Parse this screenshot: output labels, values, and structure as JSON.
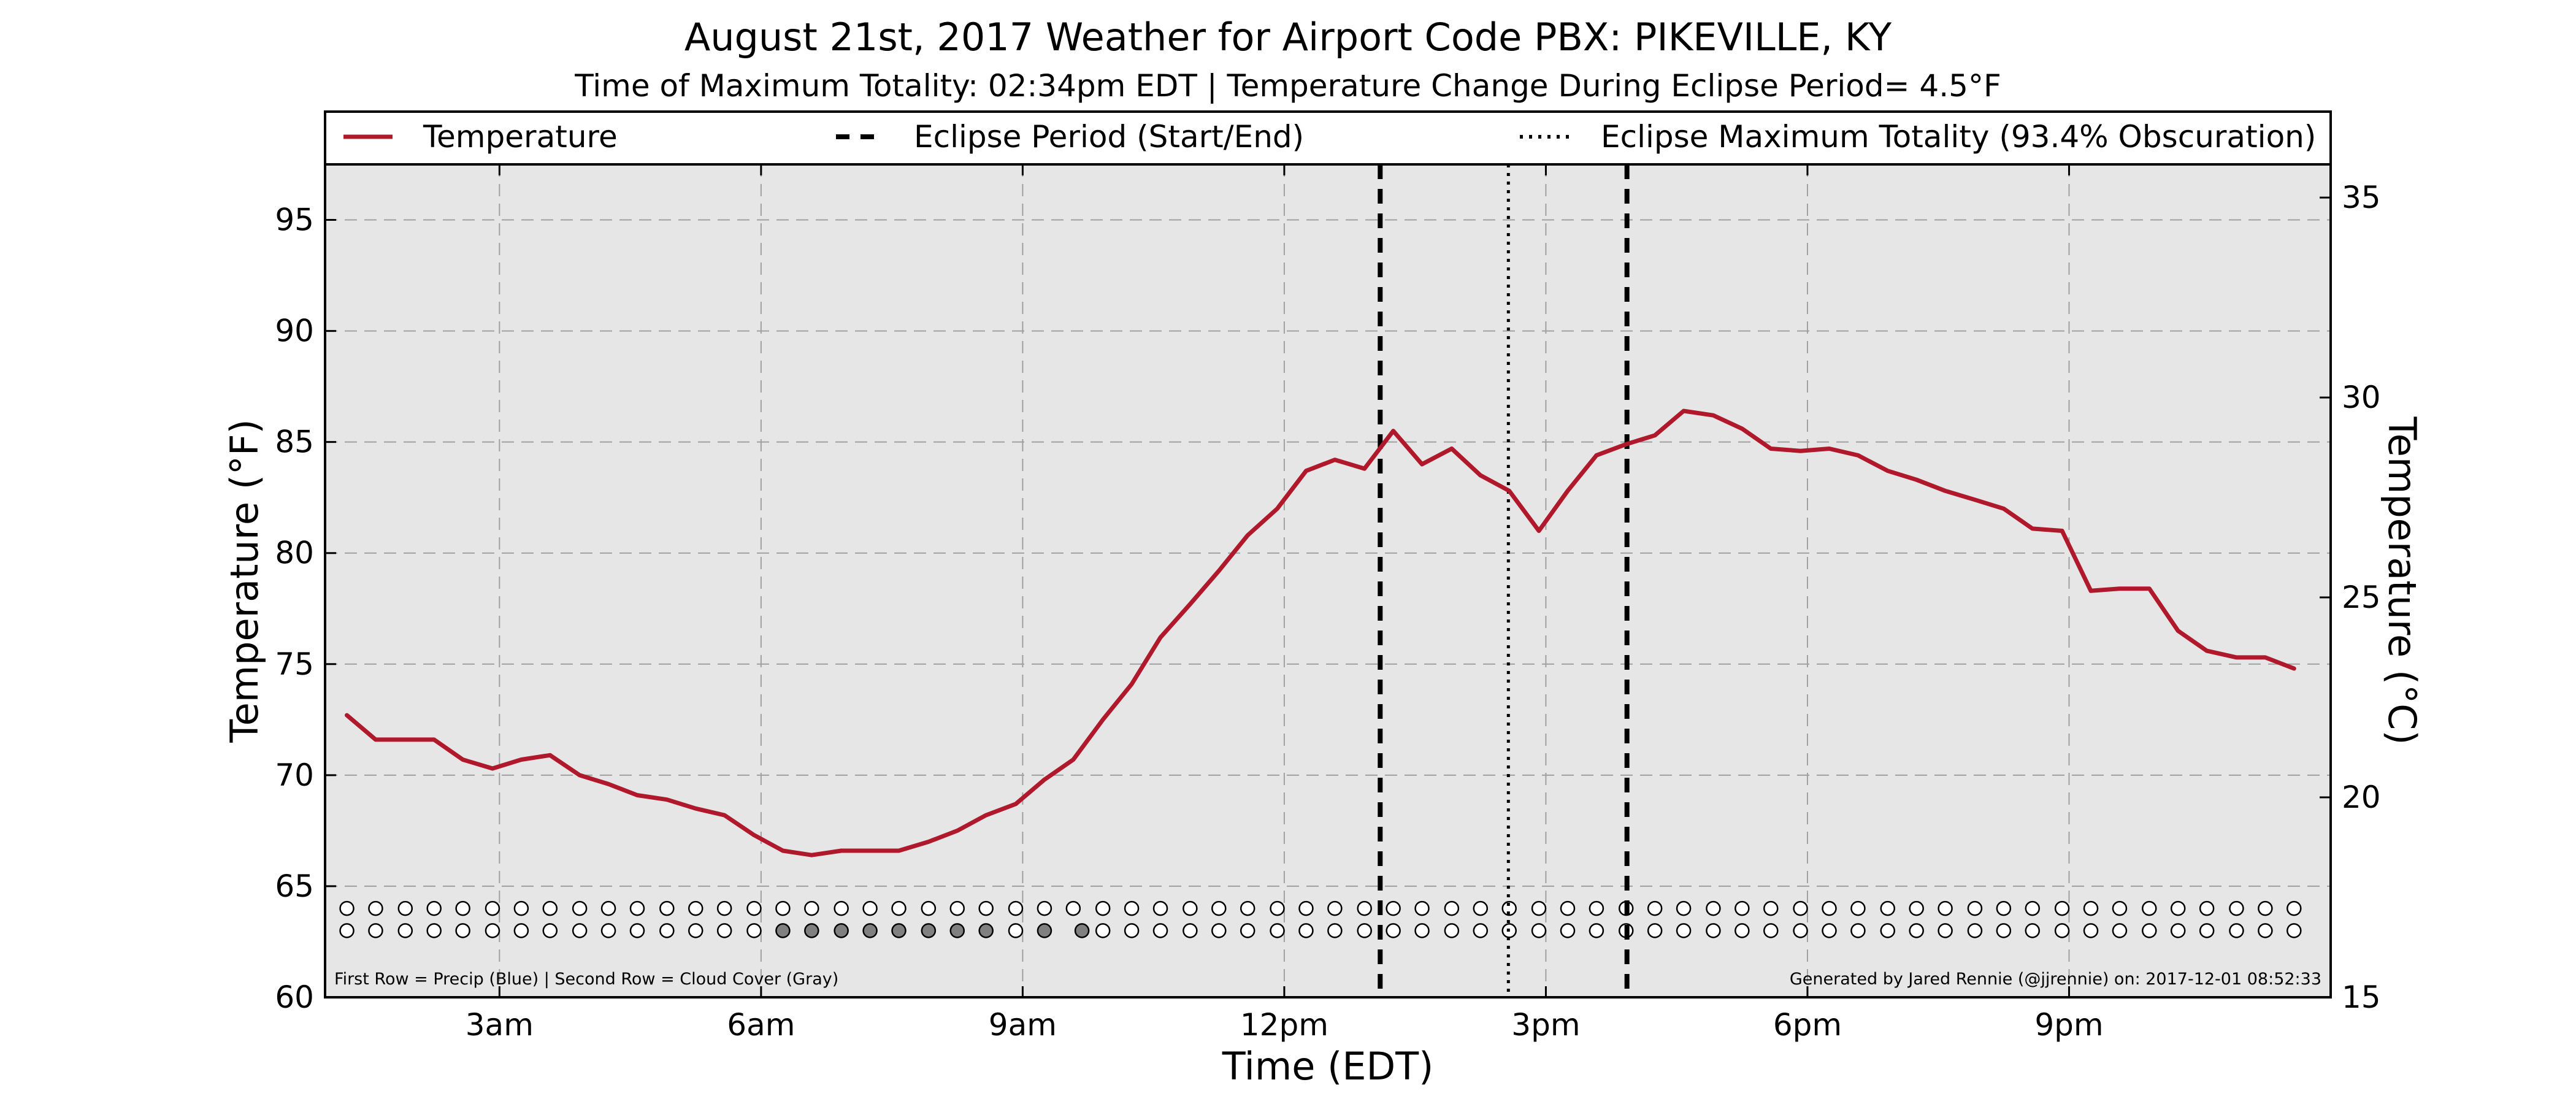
{
  "chart_data": {
    "type": "line",
    "title": "August 21st, 2017 Weather for Airport Code PBX: PIKEVILLE, KY",
    "subtitle": "Time of Maximum Totality: 02:34pm EDT | Temperature Change During Eclipse Period= 4.5°F",
    "xlabel": "Time (EDT)",
    "ylabel": "Temperature (°F)",
    "ylabel_right": "Temperature (°C)",
    "xlim": [
      1.0,
      24.0
    ],
    "ylim": [
      60,
      97.5
    ],
    "ylim_right": [
      15,
      35.83
    ],
    "x_ticks": [
      {
        "x": 3,
        "label": "3am"
      },
      {
        "x": 6,
        "label": "6am"
      },
      {
        "x": 9,
        "label": "9am"
      },
      {
        "x": 12,
        "label": "12pm"
      },
      {
        "x": 15,
        "label": "3pm"
      },
      {
        "x": 18,
        "label": "6pm"
      },
      {
        "x": 21,
        "label": "9pm"
      }
    ],
    "y_ticks": [
      60,
      65,
      70,
      75,
      80,
      85,
      90,
      95
    ],
    "y_ticks_right": [
      15,
      20,
      25,
      30,
      35
    ],
    "grid": true,
    "legend_position": "top",
    "colors": {
      "temperature": "#b0182b",
      "plot_bg": "#e6e6e6",
      "cloud_filled": "#808080",
      "marker_empty": "#ffffff"
    },
    "series": [
      {
        "name": "Temperature",
        "style": "solid",
        "x": [
          1.25,
          1.58,
          1.92,
          2.25,
          2.58,
          2.92,
          3.25,
          3.58,
          3.92,
          4.25,
          4.58,
          4.92,
          5.25,
          5.58,
          5.92,
          6.25,
          6.58,
          6.92,
          7.25,
          7.58,
          7.92,
          8.25,
          8.58,
          8.92,
          9.25,
          9.58,
          9.92,
          10.25,
          10.58,
          10.92,
          11.25,
          11.58,
          11.92,
          12.25,
          12.58,
          12.92,
          13.25,
          13.58,
          13.92,
          14.25,
          14.58,
          14.92,
          15.25,
          15.58,
          15.92,
          16.25,
          16.58,
          16.92,
          17.25,
          17.58,
          17.92,
          18.25,
          18.58,
          18.92,
          19.25,
          19.58,
          19.92,
          20.25,
          20.58,
          20.92,
          21.25,
          21.58,
          21.92,
          22.25,
          22.58,
          22.92,
          23.25,
          23.58
        ],
        "y": [
          72.7,
          71.6,
          71.6,
          71.6,
          70.7,
          70.3,
          70.7,
          70.9,
          70.0,
          69.6,
          69.1,
          68.9,
          68.5,
          68.2,
          67.3,
          66.6,
          66.4,
          66.6,
          66.6,
          66.6,
          67.0,
          67.5,
          68.2,
          68.7,
          69.8,
          70.7,
          72.5,
          74.1,
          76.2,
          77.7,
          79.2,
          80.8,
          82.0,
          83.7,
          84.2,
          83.8,
          85.5,
          84.0,
          84.7,
          83.5,
          82.8,
          81.0,
          82.8,
          84.4,
          84.9,
          85.3,
          86.4,
          86.2,
          85.6,
          84.7,
          84.6,
          84.7,
          84.4,
          83.7,
          83.3,
          82.8,
          82.4,
          82.0,
          81.1,
          81.0,
          78.3,
          78.4,
          78.4,
          76.5,
          75.6,
          75.3,
          75.3,
          74.8
        ]
      }
    ],
    "eclipse": {
      "start_x": 13.1,
      "end_x": 15.93,
      "max_x": 14.57,
      "legend_period": "Eclipse Period (Start/End)",
      "legend_max": "Eclipse Maximum Totality (93.4% Obscuration)"
    },
    "marker_rows": {
      "precip_y": 64.0,
      "cloud_y": 63.0,
      "x": [
        1.25,
        1.58,
        1.92,
        2.25,
        2.58,
        2.92,
        3.25,
        3.58,
        3.92,
        4.25,
        4.58,
        4.92,
        5.25,
        5.58,
        5.92,
        6.25,
        6.58,
        6.92,
        7.25,
        7.58,
        7.92,
        8.25,
        8.58,
        8.92,
        9.25,
        9.58,
        9.92,
        10.25,
        10.58,
        10.92,
        11.25,
        11.58,
        11.92,
        12.25,
        12.58,
        12.92,
        13.25,
        13.58,
        13.92,
        14.25,
        14.58,
        14.92,
        15.25,
        15.58,
        15.92,
        16.25,
        16.58,
        16.92,
        17.25,
        17.58,
        17.92,
        18.25,
        18.58,
        18.92,
        19.25,
        19.58,
        19.92,
        20.25,
        20.58,
        20.92,
        21.25,
        21.58,
        21.92,
        22.25,
        22.58,
        22.92,
        23.25,
        23.58
      ],
      "cloud_filled_x": [
        6.25,
        6.58,
        6.92,
        7.25,
        7.58,
        7.92,
        8.25,
        8.58,
        9.25,
        9.68
      ]
    },
    "footnote_left": "First Row = Precip (Blue) | Second Row = Cloud Cover (Gray)",
    "footnote_right": "Generated by Jared Rennie (@jjrennie) on: 2017-12-01 08:52:33"
  }
}
